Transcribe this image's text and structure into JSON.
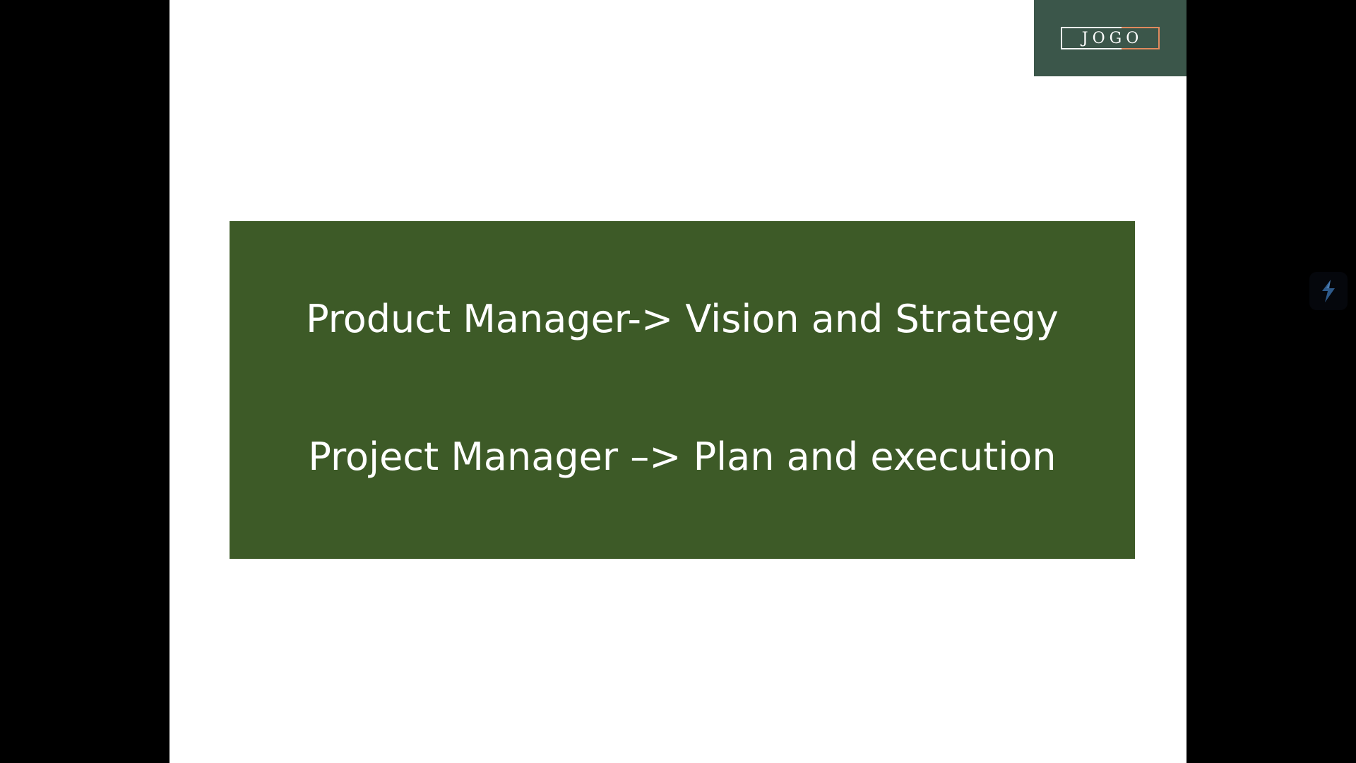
{
  "logo": {
    "text": "JOGO"
  },
  "slide": {
    "lines": [
      "Product Manager-> Vision and Strategy",
      "Project Manager –> Plan and execution"
    ]
  },
  "colors": {
    "background": "#000000",
    "slide": "#ffffff",
    "logo_block": "#3b564a",
    "logo_accent": "#e08a5e",
    "content_box": "#3d5a27",
    "content_text": "#ffffff",
    "widget_icon": "#2e5a8a"
  },
  "icons": {
    "side_widget": "lightning-app-icon"
  }
}
